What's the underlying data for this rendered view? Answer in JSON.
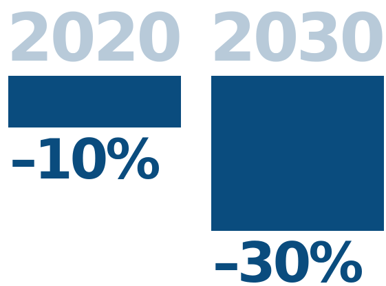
{
  "chart_data": {
    "type": "bar",
    "categories": [
      "2020",
      "2030"
    ],
    "values": [
      -10,
      -30
    ],
    "value_labels": [
      "–10%",
      "–30%"
    ],
    "ylim": [
      -30,
      0
    ],
    "grid": false,
    "orientation": "vertical-down"
  },
  "colors": {
    "bar": "#0a4c7e",
    "category_label": "#b8cad9",
    "value_label": "#0a4c7e",
    "background": "#ffffff"
  }
}
